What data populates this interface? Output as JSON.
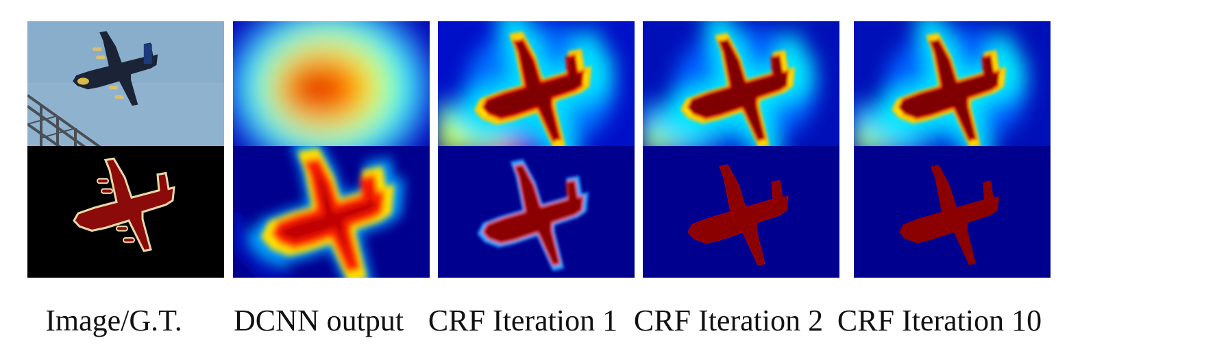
{
  "figure": {
    "columns": [
      {
        "caption": "Image/G.T.",
        "top_panel": "input-photo",
        "bottom_panel": "ground-truth-mask"
      },
      {
        "caption": "DCNN output",
        "top_panel": "dcnn-belief-heatmap",
        "bottom_panel": "dcnn-score-heatmap"
      },
      {
        "caption": "CRF Iteration 1",
        "top_panel": "crf-iter1-belief-heatmap",
        "bottom_panel": "crf-iter1-score-heatmap"
      },
      {
        "caption": "CRF Iteration 2",
        "top_panel": "crf-iter2-belief-heatmap",
        "bottom_panel": "crf-iter2-score-heatmap"
      },
      {
        "caption": "CRF Iteration 10",
        "top_panel": "crf-iter10-belief-heatmap",
        "bottom_panel": "crf-iter10-score-heatmap"
      }
    ],
    "colors": {
      "sky": "#8fb3cf",
      "mask_background": "#000000",
      "mask_airplane": "#8b0a0a",
      "mask_boundary": "#e8d9a8",
      "jet_dark_blue": "#00007f",
      "jet_blue": "#0000ff",
      "jet_cyan": "#00ffff",
      "jet_yellow": "#ffff00",
      "jet_red": "#ff0000",
      "jet_dark_red": "#7f0000"
    }
  }
}
